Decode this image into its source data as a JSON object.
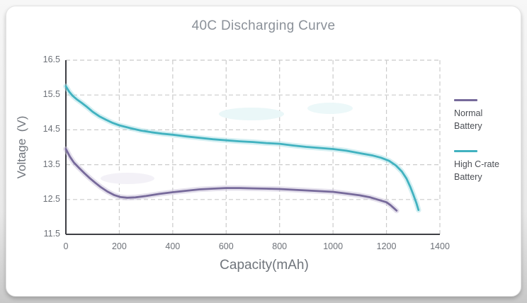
{
  "chart_data": {
    "type": "line",
    "title": "40C Discharging Curve",
    "xlabel": "Capacity(mAh)",
    "ylabel": "Voltage  (V)",
    "xlim": [
      0,
      1400
    ],
    "ylim": [
      11.5,
      16.5
    ],
    "x_ticks": [
      0,
      200,
      400,
      600,
      800,
      1000,
      1200,
      1400
    ],
    "y_ticks": [
      16.5,
      15.5,
      14.5,
      13.5,
      12.5,
      11.5
    ],
    "grid": "dashed",
    "legend_position": "right",
    "series": [
      {
        "name": "Normal Battery",
        "color": "#776a9b",
        "halo": "#cac2da",
        "points": [
          [
            0,
            13.95
          ],
          [
            15,
            13.73
          ],
          [
            30,
            13.56
          ],
          [
            50,
            13.4
          ],
          [
            70,
            13.25
          ],
          [
            90,
            13.11
          ],
          [
            110,
            12.98
          ],
          [
            130,
            12.86
          ],
          [
            155,
            12.73
          ],
          [
            180,
            12.63
          ],
          [
            205,
            12.57
          ],
          [
            230,
            12.55
          ],
          [
            260,
            12.56
          ],
          [
            300,
            12.6
          ],
          [
            350,
            12.66
          ],
          [
            400,
            12.71
          ],
          [
            450,
            12.75
          ],
          [
            500,
            12.79
          ],
          [
            550,
            12.81
          ],
          [
            600,
            12.83
          ],
          [
            650,
            12.83
          ],
          [
            700,
            12.82
          ],
          [
            750,
            12.81
          ],
          [
            800,
            12.8
          ],
          [
            850,
            12.78
          ],
          [
            900,
            12.76
          ],
          [
            950,
            12.74
          ],
          [
            1000,
            12.72
          ],
          [
            1050,
            12.67
          ],
          [
            1100,
            12.62
          ],
          [
            1140,
            12.56
          ],
          [
            1175,
            12.48
          ],
          [
            1200,
            12.42
          ],
          [
            1215,
            12.34
          ],
          [
            1228,
            12.25
          ],
          [
            1238,
            12.18
          ]
        ]
      },
      {
        "name": "High C-rate Battery",
        "color": "#41b2c0",
        "halo": "#aadfe5",
        "points": [
          [
            0,
            15.75
          ],
          [
            12,
            15.6
          ],
          [
            25,
            15.48
          ],
          [
            40,
            15.38
          ],
          [
            60,
            15.27
          ],
          [
            80,
            15.15
          ],
          [
            100,
            15.02
          ],
          [
            125,
            14.89
          ],
          [
            150,
            14.79
          ],
          [
            175,
            14.7
          ],
          [
            200,
            14.63
          ],
          [
            240,
            14.55
          ],
          [
            280,
            14.48
          ],
          [
            320,
            14.43
          ],
          [
            360,
            14.39
          ],
          [
            400,
            14.36
          ],
          [
            450,
            14.31
          ],
          [
            500,
            14.27
          ],
          [
            550,
            14.23
          ],
          [
            600,
            14.2
          ],
          [
            650,
            14.17
          ],
          [
            700,
            14.15
          ],
          [
            750,
            14.12
          ],
          [
            800,
            14.1
          ],
          [
            850,
            14.05
          ],
          [
            900,
            14.01
          ],
          [
            950,
            13.98
          ],
          [
            1000,
            13.95
          ],
          [
            1050,
            13.9
          ],
          [
            1100,
            13.83
          ],
          [
            1150,
            13.76
          ],
          [
            1180,
            13.7
          ],
          [
            1210,
            13.61
          ],
          [
            1235,
            13.48
          ],
          [
            1258,
            13.3
          ],
          [
            1275,
            13.1
          ],
          [
            1290,
            12.85
          ],
          [
            1300,
            12.65
          ],
          [
            1312,
            12.4
          ],
          [
            1320,
            12.2
          ]
        ]
      }
    ]
  },
  "colors": {
    "title_text": "#8b9199",
    "axis_label_text": "#6f747b",
    "tick_label_text": "#6d7178",
    "legend_text": "#4c4f55",
    "axis_line": "#3e3f44",
    "gridline": "#cbcbcb",
    "normal_battery_line": "#776a9b",
    "high_c_rate_line": "#41b2c0",
    "card_background": "#ffffff",
    "page_background": "#e9e9e9"
  }
}
